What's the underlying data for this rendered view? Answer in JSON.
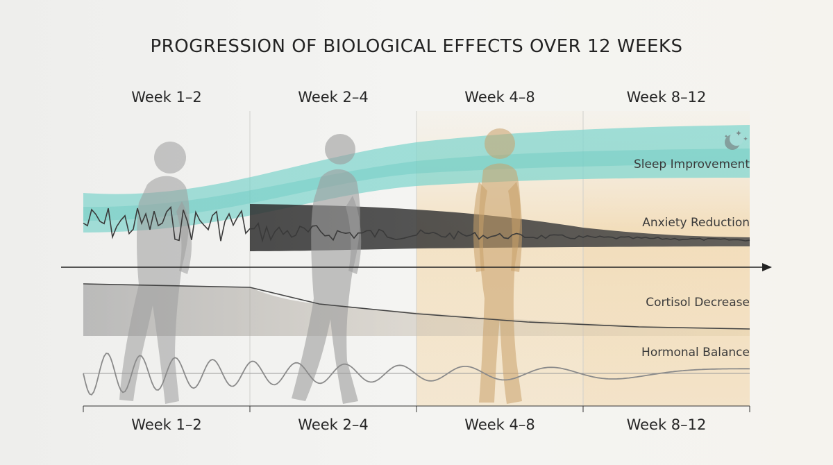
{
  "title": "PROGRESSION OF BIOLOGICAL EFFECTS OVER 12 WEEKS",
  "periods": [
    "Week 1–2",
    "Week 2–4",
    "Week 4–8",
    "Week 8–12"
  ],
  "effects": {
    "sleep": "Sleep Improvement",
    "anxiety": "Anxiety Reduction",
    "cortisol": "Cortisol Decrease",
    "hormonal": "Hormonal Balance"
  },
  "icons": {
    "sleep": "moon-stars-icon"
  },
  "colors": {
    "background": "#f1f1ef",
    "sleep_band": "#7fd3cc",
    "anxiety_band": "#3a3a3a",
    "cortisol_band": "#a6a6a6",
    "warm_band": "#f3dcb6",
    "figure": "#a9a9a9",
    "figure_final": "#d7ad72",
    "axis": "#222222"
  }
}
